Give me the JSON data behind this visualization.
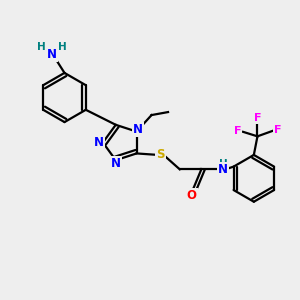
{
  "background_color": "#eeeeee",
  "atom_colors": {
    "C": "#000000",
    "N": "#0000ff",
    "O": "#ff0000",
    "S": "#ccaa00",
    "F": "#ff00ff",
    "H": "#008080"
  },
  "lw": 1.6,
  "fs": 8.0,
  "xlim": [
    0,
    10
  ],
  "ylim": [
    0,
    10
  ]
}
